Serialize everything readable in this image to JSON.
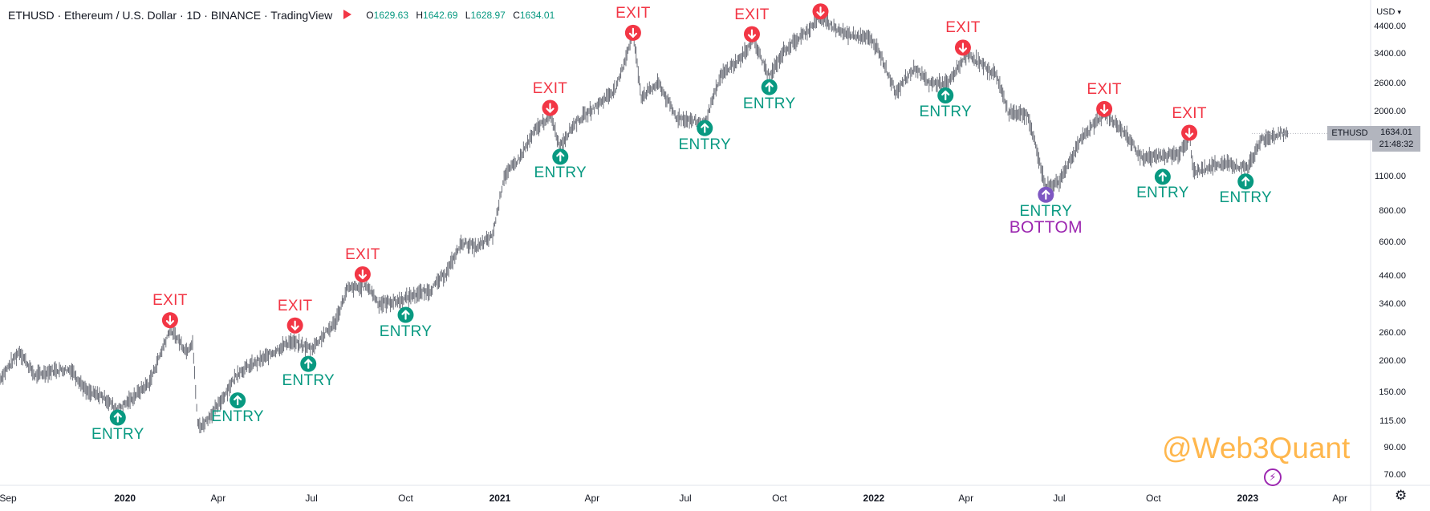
{
  "header": {
    "title": "ETHUSD · Ethereum / U.S. Dollar · 1D · BINANCE · TradingView",
    "ohlc": {
      "o_label": "O",
      "o": "1629.63",
      "h_label": "H",
      "h": "1642.69",
      "l_label": "L",
      "l": "1628.97",
      "c_label": "C",
      "c": "1634.01"
    }
  },
  "currency_label": "USD",
  "price_tag": {
    "symbol": "ETHUSD",
    "price": "1634.01",
    "countdown": "21:48:32"
  },
  "watermark": "@Web3Quant",
  "colors": {
    "candles": "#5d606b",
    "exit": "#f23645",
    "entry": "#089981",
    "bottom": "#7e57c2",
    "bottom_text": "#9c27b0",
    "watermark": "#ffb74d",
    "axis_text": "#131722"
  },
  "chart_data": {
    "type": "line",
    "scale": "log",
    "ylim": [
      66,
      5600
    ],
    "xlim": [
      "2019-09-01",
      "2023-05-01"
    ],
    "y_ticks": [
      70,
      90,
      115,
      150,
      200,
      260,
      340,
      440,
      600,
      800,
      1100,
      2000,
      2600,
      3400,
      4400
    ],
    "y_tick_labels": [
      "70.00",
      "90.00",
      "115.00",
      "150.00",
      "200.00",
      "260.00",
      "340.00",
      "440.00",
      "600.00",
      "800.00",
      "1100.00",
      "2000.00",
      "2600.00",
      "3400.00",
      "4400.00"
    ],
    "x_ticks": [
      {
        "label": "Sep",
        "date": "2019-09-01",
        "year": false
      },
      {
        "label": "2020",
        "date": "2020-01-01",
        "year": true
      },
      {
        "label": "Apr",
        "date": "2020-04-01",
        "year": false
      },
      {
        "label": "Jul",
        "date": "2020-07-01",
        "year": false
      },
      {
        "label": "Oct",
        "date": "2020-10-01",
        "year": false
      },
      {
        "label": "2021",
        "date": "2021-01-01",
        "year": true
      },
      {
        "label": "Apr",
        "date": "2021-04-01",
        "year": false
      },
      {
        "label": "Jul",
        "date": "2021-07-01",
        "year": false
      },
      {
        "label": "Oct",
        "date": "2021-10-01",
        "year": false
      },
      {
        "label": "2022",
        "date": "2022-01-01",
        "year": true
      },
      {
        "label": "Apr",
        "date": "2022-04-01",
        "year": false
      },
      {
        "label": "Jul",
        "date": "2022-07-01",
        "year": false
      },
      {
        "label": "Oct",
        "date": "2022-10-01",
        "year": false
      },
      {
        "label": "2023",
        "date": "2023-01-01",
        "year": true
      },
      {
        "label": "Apr",
        "date": "2023-04-01",
        "year": false
      }
    ],
    "series": [
      {
        "points": [
          [
            "2019-09-01",
            170
          ],
          [
            "2019-09-20",
            220
          ],
          [
            "2019-10-05",
            175
          ],
          [
            "2019-10-25",
            185
          ],
          [
            "2019-11-10",
            185
          ],
          [
            "2019-11-25",
            150
          ],
          [
            "2019-12-10",
            145
          ],
          [
            "2019-12-25",
            128
          ],
          [
            "2020-01-06",
            140
          ],
          [
            "2020-01-25",
            165
          ],
          [
            "2020-02-14",
            270
          ],
          [
            "2020-03-01",
            220
          ],
          [
            "2020-03-07",
            240
          ],
          [
            "2020-03-12",
            112
          ],
          [
            "2020-03-16",
            110
          ],
          [
            "2020-04-01",
            133
          ],
          [
            "2020-04-20",
            180
          ],
          [
            "2020-05-15",
            205
          ],
          [
            "2020-06-10",
            240
          ],
          [
            "2020-07-01",
            225
          ],
          [
            "2020-07-24",
            285
          ],
          [
            "2020-08-05",
            390
          ],
          [
            "2020-08-25",
            400
          ],
          [
            "2020-09-05",
            340
          ],
          [
            "2020-09-25",
            350
          ],
          [
            "2020-10-10",
            370
          ],
          [
            "2020-10-25",
            385
          ],
          [
            "2020-11-10",
            455
          ],
          [
            "2020-11-25",
            600
          ],
          [
            "2020-12-10",
            570
          ],
          [
            "2020-12-25",
            640
          ],
          [
            "2021-01-05",
            1100
          ],
          [
            "2021-01-20",
            1300
          ],
          [
            "2021-02-05",
            1700
          ],
          [
            "2021-02-20",
            1950
          ],
          [
            "2021-02-28",
            1450
          ],
          [
            "2021-03-15",
            1800
          ],
          [
            "2021-04-05",
            2100
          ],
          [
            "2021-04-25",
            2500
          ],
          [
            "2021-05-11",
            4150
          ],
          [
            "2021-05-19",
            2300
          ],
          [
            "2021-06-05",
            2600
          ],
          [
            "2021-06-22",
            1900
          ],
          [
            "2021-07-20",
            1800
          ],
          [
            "2021-08-05",
            2800
          ],
          [
            "2021-08-25",
            3300
          ],
          [
            "2021-09-05",
            3900
          ],
          [
            "2021-09-21",
            2750
          ],
          [
            "2021-10-05",
            3500
          ],
          [
            "2021-10-25",
            4100
          ],
          [
            "2021-11-10",
            4800
          ],
          [
            "2021-11-25",
            4300
          ],
          [
            "2021-12-05",
            4100
          ],
          [
            "2021-12-25",
            4000
          ],
          [
            "2022-01-05",
            3600
          ],
          [
            "2022-01-22",
            2400
          ],
          [
            "2022-02-10",
            3000
          ],
          [
            "2022-02-24",
            2600
          ],
          [
            "2022-03-15",
            2600
          ],
          [
            "2022-04-02",
            3450
          ],
          [
            "2022-04-20",
            3000
          ],
          [
            "2022-05-01",
            2800
          ],
          [
            "2022-05-12",
            2000
          ],
          [
            "2022-05-31",
            1950
          ],
          [
            "2022-06-13",
            1200
          ],
          [
            "2022-06-18",
            1000
          ],
          [
            "2022-07-01",
            1050
          ],
          [
            "2022-07-20",
            1500
          ],
          [
            "2022-08-14",
            2000
          ],
          [
            "2022-09-05",
            1600
          ],
          [
            "2022-09-20",
            1300
          ],
          [
            "2022-10-05",
            1330
          ],
          [
            "2022-10-25",
            1350
          ],
          [
            "2022-11-05",
            1600
          ],
          [
            "2022-11-09",
            1150
          ],
          [
            "2022-11-25",
            1200
          ],
          [
            "2022-12-10",
            1250
          ],
          [
            "2022-12-25",
            1200
          ],
          [
            "2023-01-01",
            1200
          ],
          [
            "2023-01-15",
            1550
          ],
          [
            "2023-01-25",
            1600
          ],
          [
            "2023-02-05",
            1640
          ],
          [
            "2023-02-10",
            1634
          ]
        ]
      }
    ],
    "signals": [
      {
        "type": "entry",
        "date": "2019-12-25",
        "price": 128,
        "label": "ENTRY"
      },
      {
        "type": "exit",
        "date": "2020-02-14",
        "price": 275,
        "label": "EXIT"
      },
      {
        "type": "entry",
        "date": "2020-04-20",
        "price": 150,
        "label": "ENTRY"
      },
      {
        "type": "exit",
        "date": "2020-06-15",
        "price": 262,
        "label": "EXIT"
      },
      {
        "type": "entry",
        "date": "2020-06-28",
        "price": 210,
        "label": "ENTRY"
      },
      {
        "type": "exit",
        "date": "2020-08-20",
        "price": 420,
        "label": "EXIT"
      },
      {
        "type": "entry",
        "date": "2020-10-01",
        "price": 330,
        "label": "ENTRY"
      },
      {
        "type": "exit",
        "date": "2021-02-19",
        "price": 1950,
        "label": "EXIT"
      },
      {
        "type": "entry",
        "date": "2021-03-01",
        "price": 1420,
        "label": "ENTRY"
      },
      {
        "type": "exit",
        "date": "2021-05-11",
        "price": 3900,
        "label": "EXIT"
      },
      {
        "type": "entry",
        "date": "2021-07-20",
        "price": 1850,
        "label": "ENTRY"
      },
      {
        "type": "exit",
        "date": "2021-09-04",
        "price": 3850,
        "label": "EXIT"
      },
      {
        "type": "entry",
        "date": "2021-09-21",
        "price": 2700,
        "label": "ENTRY"
      },
      {
        "type": "exit",
        "date": "2021-11-10",
        "price": 4750,
        "label": "EXIT"
      },
      {
        "type": "entry",
        "date": "2022-03-12",
        "price": 2500,
        "label": "ENTRY"
      },
      {
        "type": "exit",
        "date": "2022-03-29",
        "price": 3400,
        "label": "EXIT"
      },
      {
        "type": "bottom",
        "date": "2022-06-18",
        "price": 1000,
        "label": "ENTRY",
        "sublabel": "BOTTOM"
      },
      {
        "type": "exit",
        "date": "2022-08-14",
        "price": 1930,
        "label": "EXIT"
      },
      {
        "type": "entry",
        "date": "2022-10-10",
        "price": 1180,
        "label": "ENTRY"
      },
      {
        "type": "exit",
        "date": "2022-11-05",
        "price": 1550,
        "label": "EXIT"
      },
      {
        "type": "entry",
        "date": "2022-12-30",
        "price": 1130,
        "label": "ENTRY"
      }
    ]
  }
}
